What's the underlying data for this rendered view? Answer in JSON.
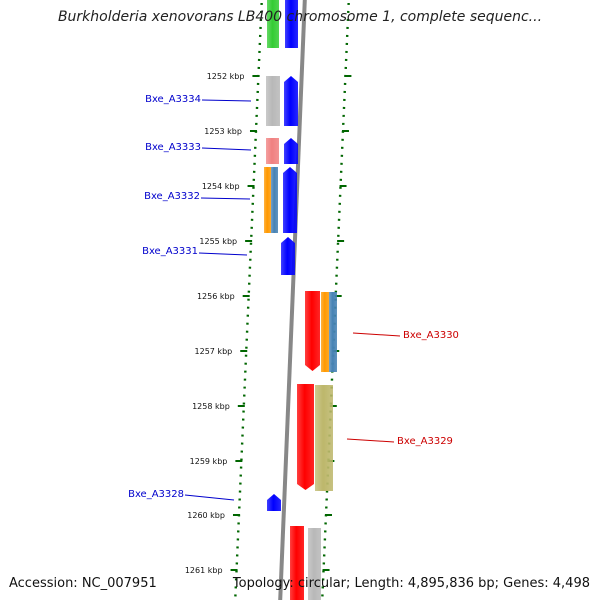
{
  "title": "Burkholderia xenovorans LB400 chromosome 1, complete sequenc...",
  "footer": {
    "accession": "Accession: NC_007951",
    "topology": "Topology: circular; Length: 4,895,836 bp; Genes: 4,498"
  },
  "colors": {
    "forward_gene_label": "#0000cc",
    "reverse_gene_label": "#cc0000",
    "tick": "#006600",
    "backbone": "#888888",
    "forward_cds": "#0000ff",
    "reverse_cds": "#ff0000",
    "cog_green": "#33cc33",
    "cog_grey": "#b8b8b8",
    "cog_pink": "#f08080",
    "cog_orange": "#ff9900",
    "cog_steelblue": "#4682b4",
    "cog_khaki": "#bdb76b"
  },
  "ticks": [
    "1252 kbp",
    "1253 kbp",
    "1254 kbp",
    "1255 kbp",
    "1256 kbp",
    "1257 kbp",
    "1258 kbp",
    "1259 kbp",
    "1260 kbp",
    "1261 kbp"
  ],
  "genes": [
    {
      "label": "Bxe_A3334",
      "strand": "forward",
      "cog": [
        "grey"
      ]
    },
    {
      "label": "Bxe_A3333",
      "strand": "forward",
      "cog": [
        "pink"
      ]
    },
    {
      "label": "Bxe_A3332",
      "strand": "forward",
      "cog": [
        "orange",
        "steelblue"
      ]
    },
    {
      "label": "Bxe_A3331",
      "strand": "forward",
      "cog": []
    },
    {
      "label": "Bxe_A3330",
      "strand": "reverse",
      "cog": [
        "orange",
        "steelblue"
      ]
    },
    {
      "label": "Bxe_A3329",
      "strand": "reverse",
      "cog": [
        "khaki"
      ]
    },
    {
      "label": "Bxe_A3328",
      "strand": "forward",
      "cog": []
    }
  ]
}
